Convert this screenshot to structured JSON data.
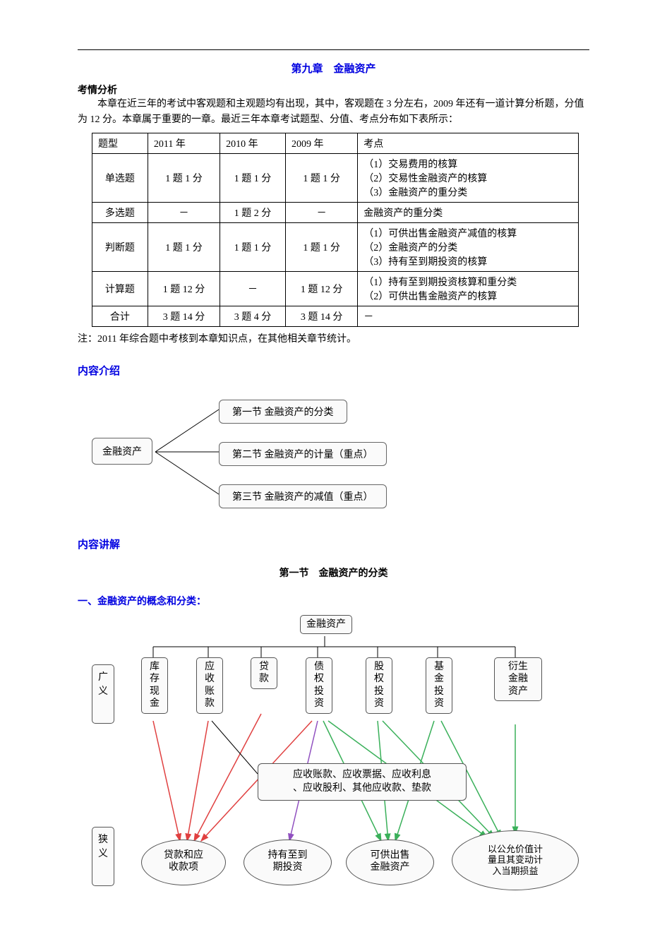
{
  "chapter_title": "第九章　金融资产",
  "analysis": {
    "heading": "考情分析",
    "para": "本章在近三年的考试中客观题和主观题均有出现，其中，客观题在 3 分左右，2009 年还有一道计算分析题，分值为 12 分。本章属于重要的一章。最近三年本章考试题型、分值、考点分布如下表所示："
  },
  "table": {
    "headers": [
      "题型",
      "2011 年",
      "2010 年",
      "2009 年",
      "考点"
    ],
    "rows": [
      {
        "type": "单选题",
        "y2011": "1 题 1 分",
        "y2010": "1 题 1 分",
        "y2009": "1 题 1 分",
        "points": "（1）交易费用的核算\n（2）交易性金融资产的核算\n（3）金融资产的重分类"
      },
      {
        "type": "多选题",
        "y2011": "－",
        "y2010": "1 题 2 分",
        "y2009": "－",
        "points": "金融资产的重分类"
      },
      {
        "type": "判断题",
        "y2011": "1 题 1 分",
        "y2010": "1 题 1 分",
        "y2009": "1 题 1 分",
        "points": "（1）可供出售金融资产减值的核算\n（2）金融资产的分类\n（3）持有至到期投资的核算"
      },
      {
        "type": "计算题",
        "y2011": "1 题 12 分",
        "y2010": "－",
        "y2009": "1 题 12 分",
        "points": "（1）持有至到期投资核算和重分类\n（2）可供出售金融资产的核算"
      },
      {
        "type": "合计",
        "y2011": "3 题 14 分",
        "y2010": "3 题 4 分",
        "y2009": "3 题 14 分",
        "points": "－"
      }
    ],
    "note": "注：2011 年综合题中考核到本章知识点，在其他相关章节统计。"
  },
  "content_intro": {
    "heading": "内容介绍",
    "root": "金融资产",
    "items": [
      "第一节 金融资产的分类",
      "第二节 金融资产的计量（重点）",
      "第三节 金融资产的减值（重点）"
    ]
  },
  "explain_heading": "内容讲解",
  "section1_title": "第一节　金融资产的分类",
  "subheading1": "一、金融资产的概念和分类：",
  "diagram2": {
    "root": "金融资产",
    "side_labels": {
      "broad": "广义",
      "narrow": "狭义"
    },
    "broad_items": [
      "库存现金",
      "应收账款",
      "贷款",
      "债权投资",
      "股权投资",
      "基金投资",
      "衍生金融资产"
    ],
    "mid_box": "应收账款、应收票据、应收利息\n、应收股利、其他应收款、垫款",
    "narrow_items": [
      "贷款和应收款项",
      "持有至到期投资",
      "可供出售金融资产",
      "以公允价值计量且其变动计入当期损益"
    ],
    "arrow_colors": {
      "red": "#e04040",
      "green": "#3ab05a",
      "purple": "#9050c0",
      "black": "#000000"
    },
    "node_bg": "#fafafa",
    "node_border": "#555555"
  }
}
